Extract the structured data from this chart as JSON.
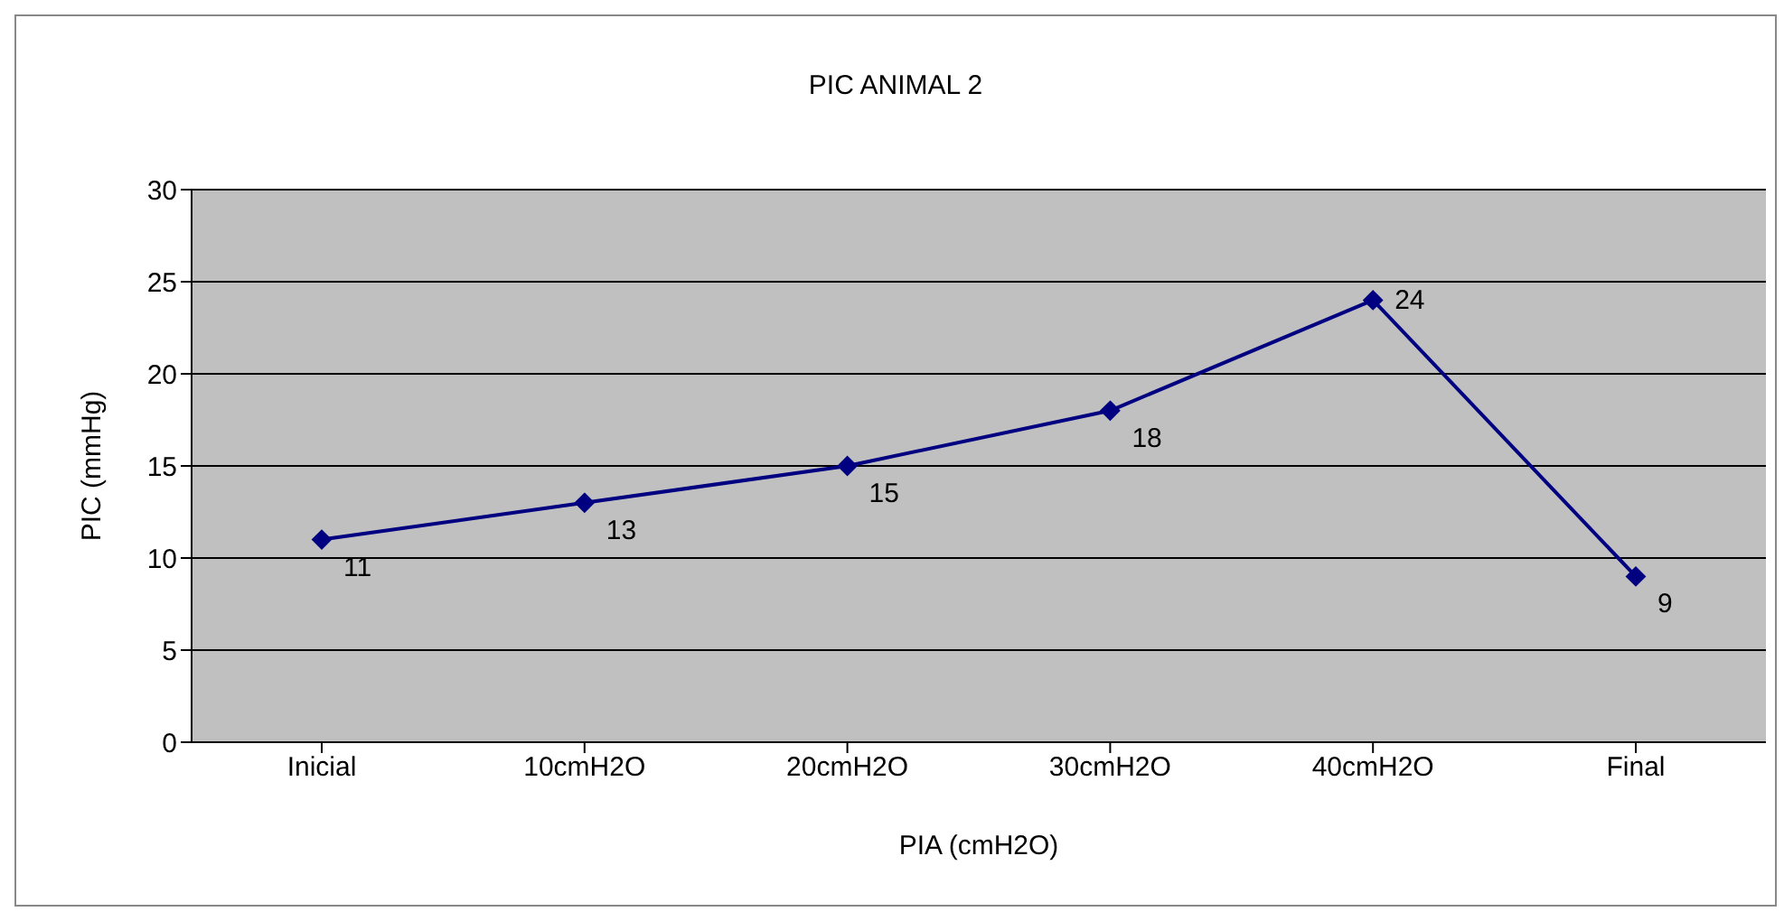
{
  "chart_data": {
    "type": "line",
    "title": "PIC  ANIMAL  2",
    "xlabel": "PIA  (cmH2O)",
    "ylabel": "PIC  (mmHg)",
    "categories": [
      "Inicial",
      "10cmH2O",
      "20cmH2O",
      "30cmH2O",
      "40cmH2O",
      "Final"
    ],
    "series": [
      {
        "color": "#000080",
        "values": [
          11,
          13,
          15,
          18,
          24,
          9
        ]
      }
    ],
    "ylim": [
      0,
      30
    ],
    "yticks": [
      0,
      5,
      10,
      15,
      20,
      25,
      30
    ],
    "grid": "y",
    "marker": "diamond",
    "line_style": "solid",
    "data_labels": true
  }
}
